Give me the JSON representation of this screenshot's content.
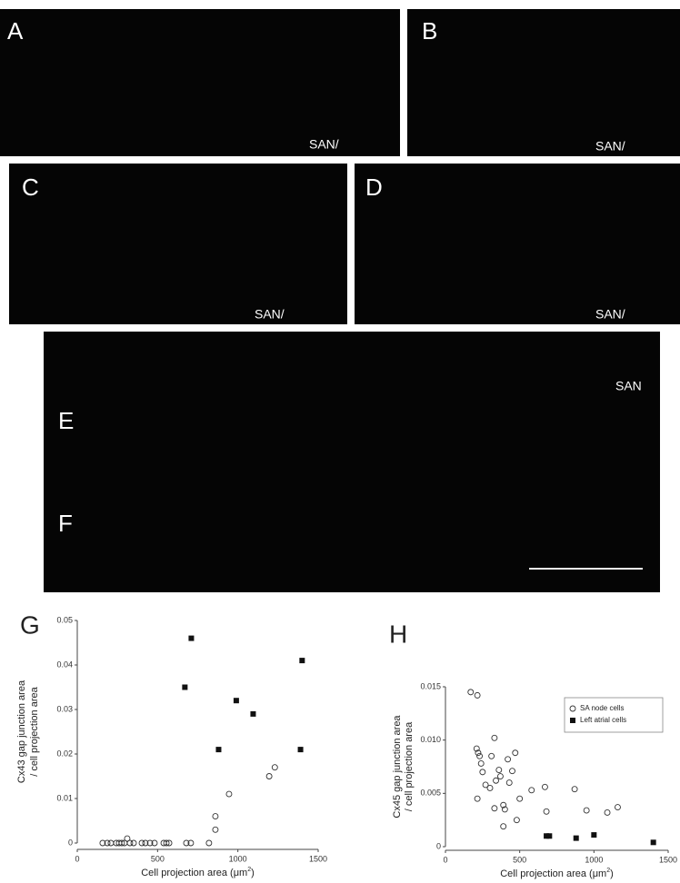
{
  "panels": [
    {
      "label": "A",
      "note": "SAN/"
    },
    {
      "label": "B",
      "note": "SAN/"
    },
    {
      "label": "C",
      "note": "SAN/"
    },
    {
      "label": "D",
      "note": "SAN/"
    },
    {
      "label": "E",
      "note": "SAN"
    },
    {
      "label": "F"
    }
  ],
  "chart_data": [
    {
      "type": "scatter",
      "label": "G",
      "xlabel": {
        "text": "Cell projection area (μm",
        "sup": "2",
        "tail": ")"
      },
      "ylabel": [
        "Cx43 gap junction area",
        "/ cell projection area"
      ],
      "xlim": [
        0,
        1500
      ],
      "xticks": [
        0,
        500,
        1000,
        1500
      ],
      "ylim": [
        0,
        0.05
      ],
      "yticks": [
        0,
        0.01,
        0.02,
        0.03,
        0.04,
        0.05
      ],
      "series": [
        {
          "marker": "open-circle",
          "color": "#333333",
          "x": [
            158,
            187,
            209,
            243,
            260,
            277,
            294,
            311,
            328,
            351,
            402,
            424,
            453,
            481,
            538,
            555,
            572,
            679,
            707,
            820,
            860,
            860,
            945,
            1195,
            1230
          ],
          "values": [
            0,
            0,
            0,
            0,
            0,
            0,
            0,
            0.001,
            0,
            0,
            0,
            0,
            0,
            0,
            0,
            0,
            0,
            0,
            0,
            0,
            0.003,
            0.006,
            0.011,
            0.015,
            0.017
          ]
        },
        {
          "marker": "filled-square",
          "color": "#111111",
          "x": [
            670,
            710,
            880,
            990,
            1095,
            1390,
            1400
          ],
          "values": [
            0.035,
            0.046,
            0.021,
            0.032,
            0.029,
            0.021,
            0.041
          ]
        }
      ]
    },
    {
      "type": "scatter",
      "label": "H",
      "xlabel": {
        "text": "Cell projection area (μm",
        "sup": "2",
        "tail": ")"
      },
      "ylabel": [
        "Cx45 gap junction area",
        "/ cell projection area"
      ],
      "xlim": [
        0,
        1500
      ],
      "xticks": [
        0,
        500,
        1000,
        1500
      ],
      "ylim": [
        0,
        0.015
      ],
      "yticks": [
        0,
        0.005,
        {
          "value": 0.01,
          "label": "0.010"
        },
        0.015
      ],
      "legend": "top-right",
      "series": [
        {
          "name": "SA node cells",
          "marker": "open-circle",
          "color": "#333333",
          "x": [
            170,
            215,
            210,
            220,
            230,
            240,
            215,
            250,
            270,
            300,
            310,
            330,
            330,
            340,
            360,
            370,
            390,
            400,
            390,
            420,
            430,
            450,
            470,
            480,
            500,
            580,
            670,
            680,
            870,
            950,
            1090,
            1160
          ],
          "values": [
            0.0145,
            0.0142,
            0.0092,
            0.0088,
            0.0085,
            0.0078,
            0.0045,
            0.007,
            0.0058,
            0.0055,
            0.0085,
            0.0102,
            0.0036,
            0.0062,
            0.0072,
            0.0066,
            0.0039,
            0.0035,
            0.0019,
            0.0082,
            0.006,
            0.0071,
            0.0088,
            0.0025,
            0.0045,
            0.0053,
            0.0056,
            0.0033,
            0.0054,
            0.0034,
            0.0032,
            0.0037
          ]
        },
        {
          "name": "Left atrial cells",
          "marker": "filled-square",
          "color": "#111111",
          "x": [
            680,
            700,
            880,
            1000,
            1400
          ],
          "values": [
            0.001,
            0.001,
            0.0008,
            0.0011,
            0.0004
          ]
        }
      ]
    }
  ]
}
